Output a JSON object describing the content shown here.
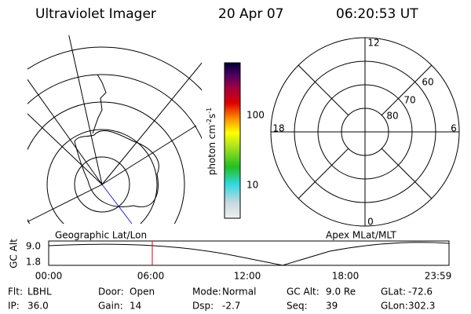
{
  "header": {
    "title": "Ultraviolet Imager",
    "date": "20 Apr 07",
    "time": "06:20:53 UT"
  },
  "colorbar": {
    "label": {
      "base": "photon cm",
      "exp1": "-2",
      "mid": "s",
      "exp2": "-1"
    },
    "ticks": [
      "100",
      "10"
    ]
  },
  "left_map": {
    "label": "Geographic Lat/Lon"
  },
  "right_map": {
    "label": "Apex MLat/MLT",
    "mlt_labels": [
      "12",
      "6",
      "0",
      "18"
    ],
    "lat_labels": [
      "60",
      "70",
      "80"
    ]
  },
  "timeline": {
    "y_label": "GC Alt",
    "y_ticks": [
      "9.0",
      "1.8"
    ],
    "x_ticks": [
      "00:00",
      "06:00",
      "12:00",
      "18:00",
      "23:59"
    ]
  },
  "footer": [
    [
      {
        "label": "Flt:",
        "value": "LBHL"
      },
      {
        "label": "Door:",
        "value": "Open"
      },
      {
        "label": "Mode:",
        "value": "Normal"
      },
      {
        "label": "GC Alt:",
        "value": "9.0 Re"
      },
      {
        "label": "GLat:",
        "value": "-72.6"
      }
    ],
    [
      {
        "label": "IP:",
        "value": "36.0"
      },
      {
        "label": "Gain:",
        "value": "14"
      },
      {
        "label": "Dsp:",
        "value": "-2.7"
      },
      {
        "label": "Seq:",
        "value": "39"
      },
      {
        "label": "GLon:",
        "value": "302.3"
      }
    ]
  ]
}
